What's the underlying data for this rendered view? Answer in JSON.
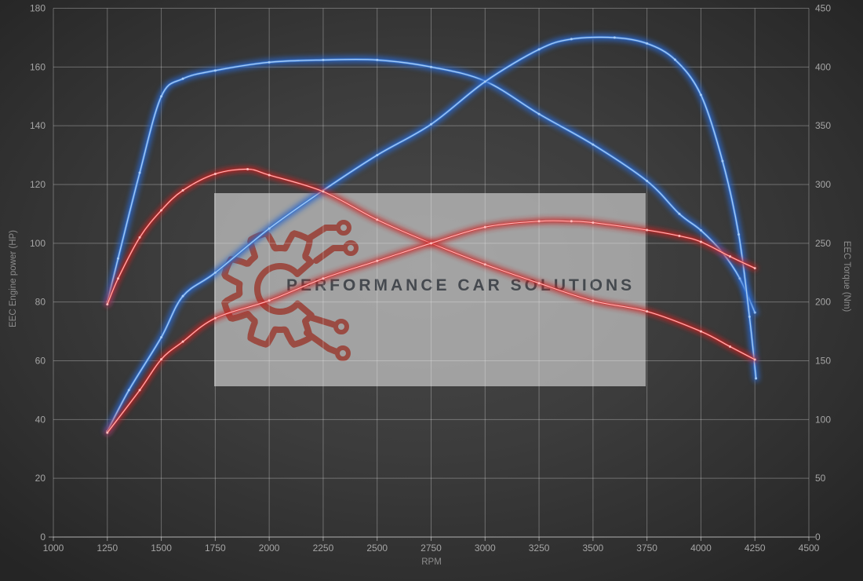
{
  "watermark": {
    "text": "PERFORMANCE CAR SOLUTIONS",
    "box_color": "rgba(214,214,214,0.65)",
    "logo_color": "#9a4036",
    "text_color": "#3b4046"
  },
  "colors": {
    "background_center": "#484848",
    "background_edge": "#252525",
    "grid": "rgba(235,235,235,0.32)",
    "axis_line": "rgba(235,235,235,0.55)",
    "tick_label": "#a5a5a5",
    "axis_title": "#8d8d8d"
  },
  "chart_data": {
    "type": "line",
    "title": "",
    "xlabel": "RPM",
    "grid": true,
    "legend": false,
    "x_axis": {
      "min": 1000,
      "max": 4500,
      "ticks": [
        1000,
        1250,
        1500,
        1750,
        2000,
        2250,
        2500,
        2750,
        3000,
        3250,
        3500,
        3750,
        4000,
        4250,
        4500
      ]
    },
    "y_left": {
      "label": "EEC Engine power (HP)",
      "min": 0,
      "max": 180,
      "ticks": [
        0,
        20,
        40,
        60,
        80,
        100,
        120,
        140,
        160,
        180
      ]
    },
    "y_right": {
      "label": "EEC Torque (Nm)",
      "min": 0,
      "max": 450,
      "ticks": [
        0,
        50,
        100,
        150,
        200,
        250,
        300,
        350,
        400,
        450
      ]
    },
    "series": [
      {
        "name": "torque_tuned_blue",
        "axis": "right",
        "unit": "Nm",
        "color": "#3a78d2",
        "glow": "#2b66c8",
        "core": "#a8cdf5",
        "family": "blue",
        "points": [
          [
            1250,
            200
          ],
          [
            1300,
            237
          ],
          [
            1400,
            310
          ],
          [
            1500,
            375
          ],
          [
            1600,
            390
          ],
          [
            1750,
            397
          ],
          [
            2000,
            404
          ],
          [
            2250,
            406
          ],
          [
            2500,
            406
          ],
          [
            2750,
            400
          ],
          [
            3000,
            388
          ],
          [
            3250,
            360
          ],
          [
            3500,
            334
          ],
          [
            3750,
            303
          ],
          [
            3900,
            275
          ],
          [
            4000,
            261
          ],
          [
            4100,
            242
          ],
          [
            4180,
            220
          ],
          [
            4250,
            191
          ]
        ]
      },
      {
        "name": "power_tuned_blue",
        "axis": "left",
        "unit": "HP",
        "color": "#3a78d2",
        "glow": "#2b66c8",
        "core": "#a8cdf5",
        "family": "blue",
        "points": [
          [
            1250,
            36
          ],
          [
            1350,
            50
          ],
          [
            1500,
            68
          ],
          [
            1600,
            82
          ],
          [
            1750,
            90
          ],
          [
            2000,
            105
          ],
          [
            2250,
            118
          ],
          [
            2500,
            130
          ],
          [
            2750,
            140.5
          ],
          [
            3000,
            155
          ],
          [
            3250,
            166
          ],
          [
            3400,
            169.5
          ],
          [
            3600,
            170
          ],
          [
            3750,
            168
          ],
          [
            3880,
            162.5
          ],
          [
            4000,
            150.5
          ],
          [
            4100,
            128
          ],
          [
            4175,
            103
          ],
          [
            4225,
            75
          ],
          [
            4255,
            54
          ]
        ]
      },
      {
        "name": "torque_stock_red",
        "axis": "right",
        "unit": "Nm",
        "color": "#d93434",
        "glow": "#c92222",
        "core": "#ffc2c2",
        "family": "red",
        "points": [
          [
            1250,
            198
          ],
          [
            1300,
            220
          ],
          [
            1400,
            255
          ],
          [
            1500,
            278
          ],
          [
            1600,
            295
          ],
          [
            1750,
            309
          ],
          [
            1900,
            313
          ],
          [
            2000,
            308
          ],
          [
            2250,
            294
          ],
          [
            2500,
            270
          ],
          [
            2750,
            250
          ],
          [
            3000,
            232
          ],
          [
            3250,
            216
          ],
          [
            3500,
            201
          ],
          [
            3750,
            192
          ],
          [
            4000,
            175
          ],
          [
            4135,
            162
          ],
          [
            4250,
            151
          ]
        ]
      },
      {
        "name": "power_stock_red",
        "axis": "left",
        "unit": "HP",
        "color": "#d93434",
        "glow": "#c92222",
        "core": "#ffc2c2",
        "family": "red",
        "points": [
          [
            1250,
            35.5
          ],
          [
            1400,
            50
          ],
          [
            1500,
            60.5
          ],
          [
            1600,
            66.5
          ],
          [
            1750,
            74.5
          ],
          [
            2000,
            80.5
          ],
          [
            2250,
            88
          ],
          [
            2500,
            94
          ],
          [
            2750,
            100
          ],
          [
            3000,
            105.5
          ],
          [
            3250,
            107.5
          ],
          [
            3400,
            107.5
          ],
          [
            3500,
            107
          ],
          [
            3750,
            104.5
          ],
          [
            3900,
            102.5
          ],
          [
            4000,
            100.5
          ],
          [
            4135,
            95.5
          ],
          [
            4250,
            91.5
          ]
        ]
      }
    ]
  }
}
